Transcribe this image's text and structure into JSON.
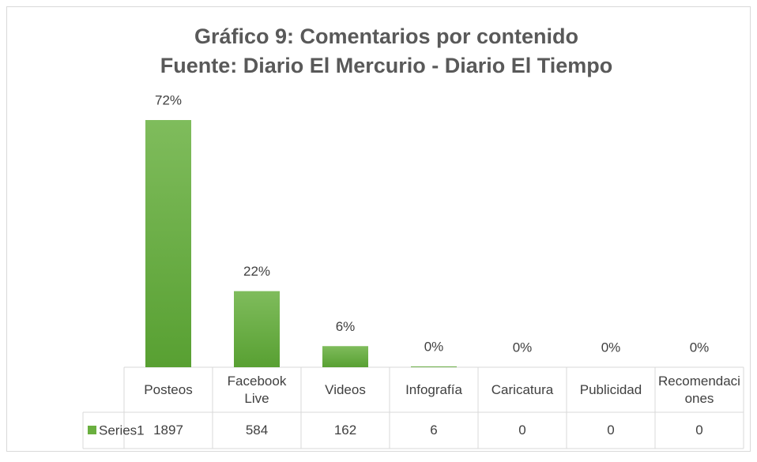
{
  "chart_data": {
    "type": "bar",
    "title": "Gráfico 9: Comentarios por contenido",
    "subtitle": "Fuente: Diario El Mercurio - Diario El Tiempo",
    "categories": [
      "Posteos",
      "Facebook Live",
      "Videos",
      "Infografía",
      "Caricatura",
      "Publicidad",
      "Recomendaciones"
    ],
    "series": [
      {
        "name": "Series1",
        "color": "#6aaf3f",
        "values": [
          1897,
          584,
          162,
          6,
          0,
          0,
          0
        ]
      }
    ],
    "data_labels": [
      "72%",
      "22%",
      "6%",
      "0%",
      "0%",
      "0%",
      "0%"
    ]
  }
}
